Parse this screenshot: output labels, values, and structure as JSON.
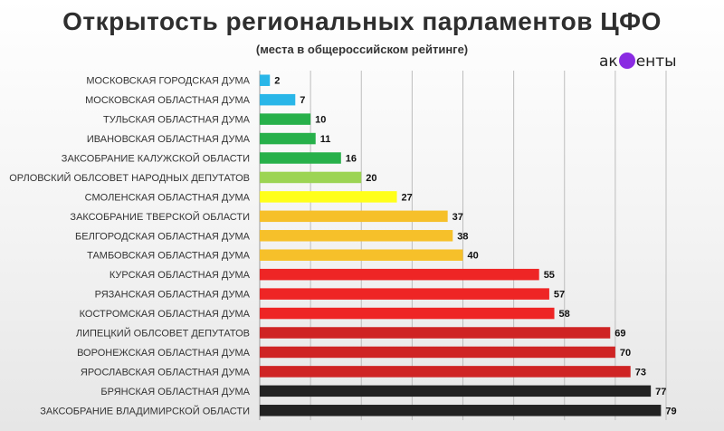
{
  "header": {
    "title": "Открытость региональных парламентов ЦФО",
    "subtitle": "(места в общероссийском рейтинге)",
    "brand_prefix": "ак",
    "brand_suffix": "енты"
  },
  "colors": {
    "blue": "#29b6e8",
    "green": "#27b04a",
    "lightgreen": "#9cd454",
    "yellow": "#ffff1a",
    "orange": "#f6c02a",
    "red": "#ee2525",
    "darkred": "#cf2424",
    "black": "#222222",
    "grid": "#bdbdbd",
    "brand": "#8a2be2"
  },
  "chart_data": {
    "type": "bar",
    "orientation": "horizontal",
    "title": "Открытость региональных парламентов ЦФО",
    "subtitle": "(места в общероссийском рейтинге)",
    "xlim": [
      0,
      80
    ],
    "grid": true,
    "categories": [
      "МОСКОВСКАЯ ГОРОДСКАЯ ДУМА",
      "МОСКОВСКАЯ ОБЛАСТНАЯ ДУМА",
      "ТУЛЬСКАЯ ОБЛАСТНАЯ ДУМА",
      "ИВАНОВСКАЯ ОБЛАСТНАЯ ДУМА",
      "ЗАКСОБРАНИЕ КАЛУЖСКОЙ ОБЛАСТИ",
      "ОРЛОВСКИЙ ОБЛСОВЕТ НАРОДНЫХ ДЕПУТАТОВ",
      "СМОЛЕНСКАЯ ОБЛАСТНАЯ ДУМА",
      "ЗАКСОБРАНИЕ ТВЕРСКОЙ ОБЛАСТИ",
      "БЕЛГОРОДСКАЯ ОБЛАСТНАЯ ДУМА",
      "ТАМБОВСКАЯ ОБЛАСТНАЯ ДУМА",
      "КУРСКАЯ ОБЛАСТНАЯ ДУМА",
      "РЯЗАНСКАЯ ОБЛАСТНАЯ ДУМА",
      "КОСТРОМСКАЯ ОБЛАСТНАЯ ДУМА",
      "ЛИПЕЦКИЙ ОБЛСОВЕТ ДЕПУТАТОВ",
      "ВОРОНЕЖСКАЯ ОБЛАСТНАЯ ДУМА",
      "ЯРОСЛАВСКАЯ ОБЛАСТНАЯ ДУМА",
      "БРЯНСКАЯ ОБЛАСТНАЯ ДУМА",
      "ЗАКСОБРАНИЕ ВЛАДИМИРСКОЙ ОБЛАСТИ"
    ],
    "values": [
      2,
      7,
      10,
      11,
      16,
      20,
      27,
      37,
      38,
      40,
      55,
      57,
      58,
      69,
      70,
      73,
      77,
      79
    ],
    "bar_colors": [
      "#29b6e8",
      "#29b6e8",
      "#27b04a",
      "#27b04a",
      "#27b04a",
      "#9cd454",
      "#ffff1a",
      "#f6c02a",
      "#f6c02a",
      "#f6c02a",
      "#ee2525",
      "#ee2525",
      "#ee2525",
      "#cf2424",
      "#cf2424",
      "#cf2424",
      "#222222",
      "#222222"
    ]
  }
}
